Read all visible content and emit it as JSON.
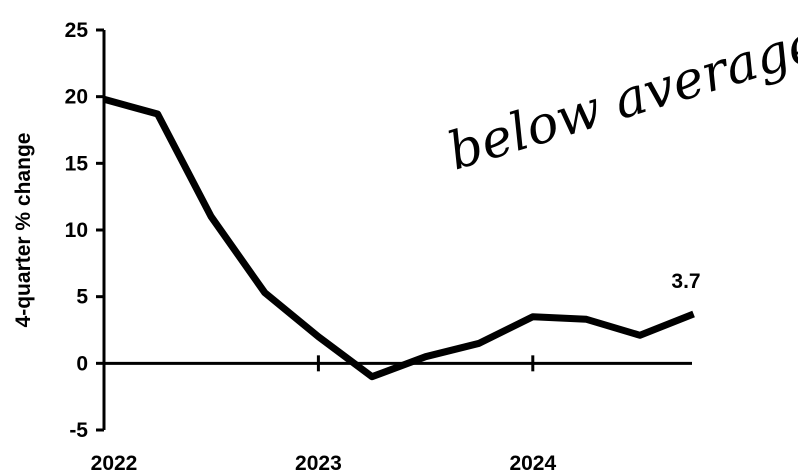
{
  "chart_data": {
    "type": "line",
    "title": "",
    "ylabel": "4-quarter % change",
    "xlabel": "",
    "ylim": [
      -5,
      25
    ],
    "yticks": [
      25,
      20,
      15,
      10,
      5,
      0,
      -5
    ],
    "xticks": [
      {
        "label": "2022",
        "q": 0
      },
      {
        "label": "2023",
        "q": 4
      },
      {
        "label": "2024",
        "q": 8
      }
    ],
    "series": [
      {
        "q": [
          0,
          1,
          2,
          3,
          4,
          5,
          6,
          7,
          8,
          9,
          10,
          11
        ],
        "values": [
          19.8,
          18.7,
          11.0,
          5.3,
          2.0,
          -1.0,
          0.5,
          1.5,
          3.5,
          3.3,
          2.1,
          3.7
        ]
      }
    ],
    "end_label": "3.7",
    "annotation": "below average",
    "colors": {
      "line": "#000000",
      "axis": "#000000"
    }
  }
}
